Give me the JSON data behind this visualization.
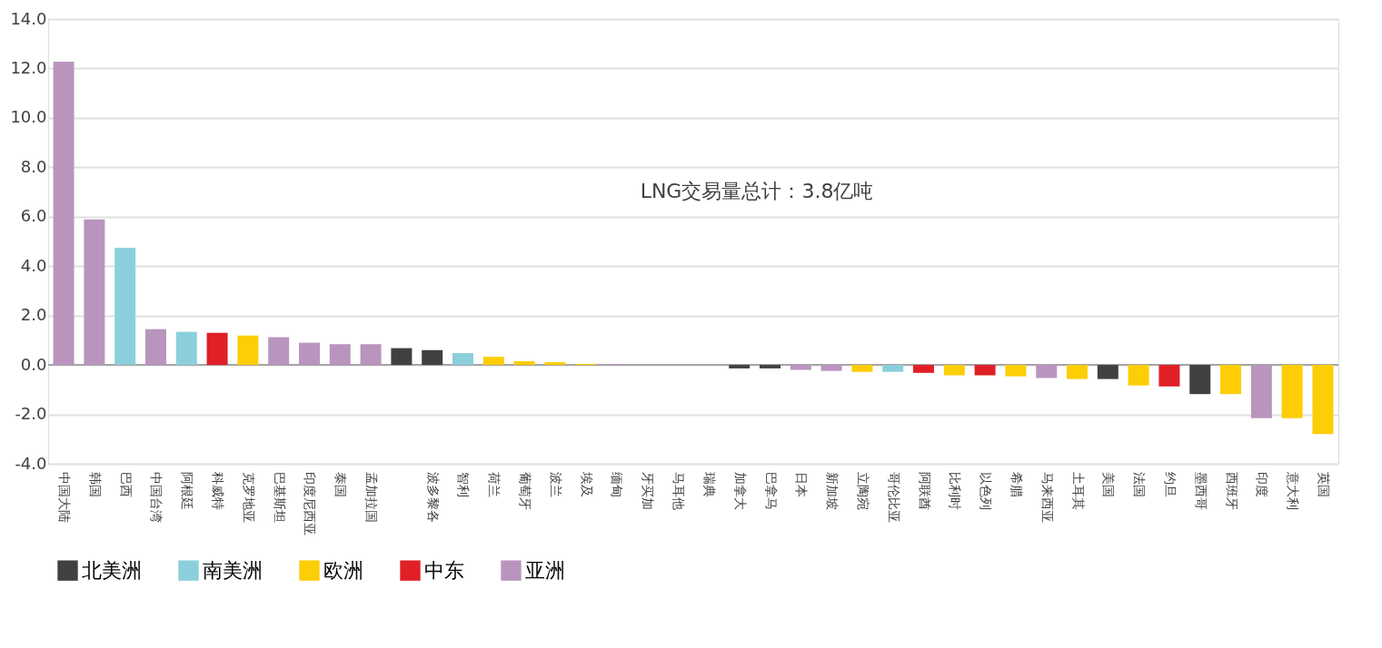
{
  "chart_data": {
    "type": "bar",
    "categories": [
      "中国大陆",
      "韩国",
      "巴西",
      "中国台湾",
      "阿根廷",
      "科威特",
      "克罗地亚",
      "巴基斯坦",
      "印度尼西亚",
      "泰国",
      "孟加拉国",
      null,
      "波多黎各",
      "智利",
      "荷兰",
      "葡萄牙",
      "波兰",
      "埃及",
      "缅甸",
      "牙买加",
      "马耳他",
      "瑞典",
      "加拿大",
      "巴拿马",
      "日本",
      "新加坡",
      "立陶宛",
      "哥伦比亚",
      "阿联酋",
      "比利时",
      "以色列",
      "希腊",
      "马来西亚",
      "土耳其",
      "美国",
      "法国",
      "约旦",
      "墨西哥",
      "西班牙",
      "印度",
      "意大利",
      "英国"
    ],
    "series": [
      {
        "name": "北美洲",
        "color": "#404040",
        "values": [
          null,
          null,
          null,
          null,
          null,
          null,
          null,
          null,
          null,
          null,
          null,
          0.68,
          0.6,
          null,
          null,
          null,
          null,
          null,
          null,
          null,
          null,
          null,
          -0.14,
          -0.14,
          null,
          null,
          null,
          null,
          null,
          null,
          null,
          null,
          null,
          null,
          -0.57,
          null,
          null,
          -1.18,
          null,
          null,
          null,
          null
        ]
      },
      {
        "name": "南美洲",
        "color": "#8ccfdc",
        "values": [
          null,
          null,
          4.74,
          null,
          1.34,
          null,
          null,
          null,
          null,
          null,
          null,
          null,
          null,
          0.48,
          null,
          null,
          null,
          null,
          null,
          null,
          null,
          null,
          null,
          null,
          null,
          null,
          null,
          -0.28,
          null,
          null,
          null,
          null,
          null,
          null,
          null,
          null,
          null,
          null,
          null,
          null,
          null,
          null
        ]
      },
      {
        "name": "欧洲",
        "color": "#fdcd06",
        "values": [
          null,
          null,
          null,
          null,
          null,
          null,
          1.19,
          null,
          null,
          null,
          null,
          null,
          null,
          null,
          0.33,
          0.15,
          0.11,
          0.04,
          null,
          0,
          0,
          0,
          null,
          null,
          null,
          null,
          -0.28,
          null,
          null,
          -0.42,
          null,
          -0.46,
          null,
          -0.57,
          null,
          -0.83,
          null,
          null,
          -1.18,
          null,
          -2.15,
          -2.8
        ]
      },
      {
        "name": "中东",
        "color": "#e01f26",
        "values": [
          null,
          null,
          null,
          null,
          null,
          1.3,
          null,
          null,
          null,
          null,
          null,
          null,
          null,
          null,
          null,
          null,
          null,
          null,
          null,
          null,
          null,
          null,
          null,
          null,
          null,
          null,
          null,
          null,
          -0.32,
          null,
          -0.42,
          null,
          null,
          null,
          null,
          null,
          -0.87,
          null,
          null,
          null,
          null,
          null
        ]
      },
      {
        "name": "亚洲",
        "color": "#b995be",
        "values": [
          12.27,
          5.89,
          null,
          1.45,
          null,
          null,
          null,
          1.12,
          0.9,
          0.84,
          0.84,
          null,
          null,
          null,
          null,
          null,
          null,
          null,
          0.04,
          null,
          null,
          null,
          null,
          null,
          -0.2,
          -0.24,
          null,
          null,
          null,
          null,
          null,
          null,
          -0.53,
          null,
          null,
          null,
          null,
          null,
          null,
          -2.15,
          null,
          null
        ]
      }
    ],
    "ylim": [
      -4,
      14
    ],
    "yticks": [
      {
        "value": -4,
        "label": "-4.0"
      },
      {
        "value": -2,
        "label": "-2.0"
      },
      {
        "value": 0,
        "label": "0.0"
      },
      {
        "value": 2,
        "label": "2.0"
      },
      {
        "value": 4,
        "label": "4.0"
      },
      {
        "value": 6,
        "label": "6.0"
      },
      {
        "value": 8,
        "label": "8.0"
      },
      {
        "value": 10,
        "label": "10.0"
      },
      {
        "value": 12,
        "label": "12.0"
      },
      {
        "value": 14,
        "label": "14.0"
      }
    ],
    "grid": "y",
    "legend": "bottom",
    "annotations": [
      "LNG交易量总计：3.8亿吨"
    ]
  }
}
